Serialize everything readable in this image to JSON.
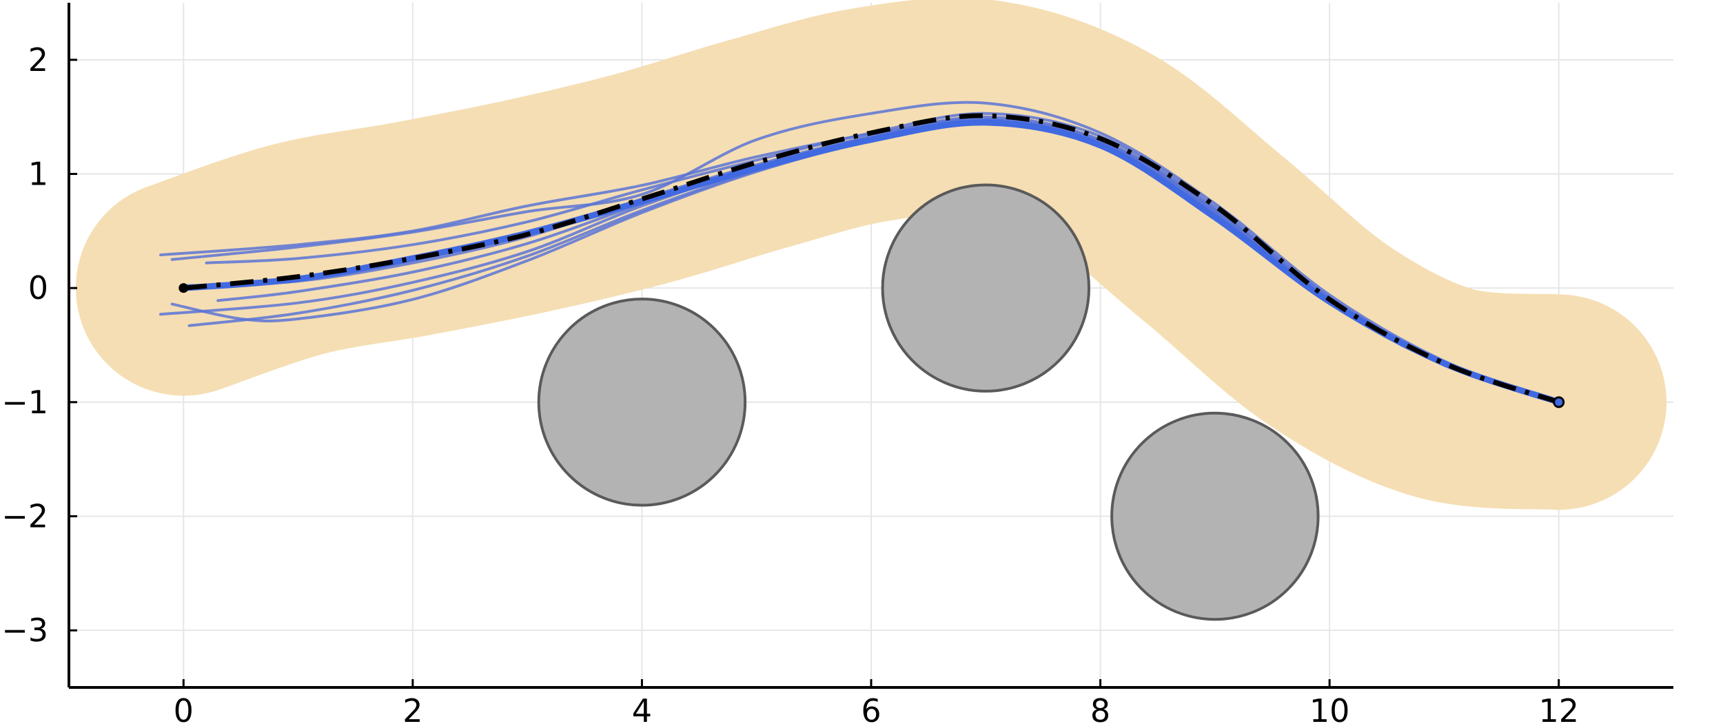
{
  "chart_data": {
    "type": "line",
    "title": "",
    "xlabel": "",
    "ylabel": "",
    "xlim": [
      -1,
      13
    ],
    "ylim": [
      -3.5,
      2.5
    ],
    "xticks": [
      0,
      2,
      4,
      6,
      8,
      10,
      12
    ],
    "yticks": [
      -3,
      -2,
      -1,
      0,
      1,
      2
    ],
    "xtick_labels": [
      "0",
      "2",
      "4",
      "6",
      "8",
      "10",
      "12"
    ],
    "ytick_labels": [
      "−3",
      "−2",
      "−1",
      "0",
      "1",
      "2"
    ],
    "grid": true,
    "legend": "none",
    "colors": {
      "corridor": "#f5deb3",
      "obstacle_fill": "#b3b3b3",
      "obstacle_edge": "#5a5a5a",
      "samples": "#5b74d6",
      "mean": "#4169e1",
      "reference": "#000000"
    },
    "corridor": {
      "centerline": [
        [
          0,
          0
        ],
        [
          1,
          0.34
        ],
        [
          2,
          0.52
        ],
        [
          3,
          0.72
        ],
        [
          4,
          0.96
        ],
        [
          5,
          1.26
        ],
        [
          6,
          1.52
        ],
        [
          7,
          1.58
        ],
        [
          8,
          1.22
        ],
        [
          9,
          0.42
        ],
        [
          10,
          -0.42
        ],
        [
          11,
          -0.92
        ],
        [
          12,
          -1
        ]
      ],
      "half_width": 0.94
    },
    "obstacles": [
      {
        "x": 4,
        "y": -1,
        "r": 0.9
      },
      {
        "x": 7,
        "y": 0,
        "r": 0.9
      },
      {
        "x": 9,
        "y": -2,
        "r": 0.9
      }
    ],
    "reference_path": [
      [
        0,
        0
      ],
      [
        1,
        0.1
      ],
      [
        2,
        0.26
      ],
      [
        3,
        0.47
      ],
      [
        4,
        0.78
      ],
      [
        5,
        1.1
      ],
      [
        6,
        1.36
      ],
      [
        7,
        1.51
      ],
      [
        8,
        1.31
      ],
      [
        9,
        0.72
      ],
      [
        10,
        -0.1
      ],
      [
        11,
        -0.66
      ],
      [
        12,
        -1
      ]
    ],
    "mean_path": [
      [
        0,
        0
      ],
      [
        1,
        0.08
      ],
      [
        2,
        0.26
      ],
      [
        3,
        0.48
      ],
      [
        4,
        0.76
      ],
      [
        5,
        1.05
      ],
      [
        6,
        1.3
      ],
      [
        7,
        1.45
      ],
      [
        8,
        1.25
      ],
      [
        9,
        0.62
      ],
      [
        10,
        -0.12
      ],
      [
        11,
        -0.66
      ],
      [
        12,
        -1
      ]
    ],
    "sample_paths": [
      [
        [
          -0.2,
          0.29
        ],
        [
          1,
          0.38
        ],
        [
          2,
          0.5
        ],
        [
          3,
          0.72
        ],
        [
          4,
          0.9
        ],
        [
          5,
          1.15
        ],
        [
          6,
          1.35
        ],
        [
          7,
          1.48
        ],
        [
          8,
          1.27
        ],
        [
          9,
          0.66
        ],
        [
          10,
          -0.11
        ],
        [
          11,
          -0.66
        ],
        [
          12,
          -1
        ]
      ],
      [
        [
          -0.1,
          0.25
        ],
        [
          1,
          0.36
        ],
        [
          2,
          0.49
        ],
        [
          3,
          0.67
        ],
        [
          4,
          0.82
        ],
        [
          5,
          1.3
        ],
        [
          6,
          1.53
        ],
        [
          7,
          1.62
        ],
        [
          8,
          1.36
        ],
        [
          9,
          0.74
        ],
        [
          10,
          -0.06
        ],
        [
          11,
          -0.64
        ],
        [
          12,
          -1
        ]
      ],
      [
        [
          0.2,
          0.22
        ],
        [
          1,
          0.26
        ],
        [
          2,
          0.38
        ],
        [
          3,
          0.58
        ],
        [
          4,
          0.86
        ],
        [
          5,
          1.12
        ],
        [
          6,
          1.36
        ],
        [
          7,
          1.53
        ],
        [
          8,
          1.33
        ],
        [
          9,
          0.71
        ],
        [
          10,
          -0.08
        ],
        [
          11,
          -0.65
        ],
        [
          12,
          -1
        ]
      ],
      [
        [
          0,
          0.02
        ],
        [
          1,
          0.06
        ],
        [
          2,
          0.22
        ],
        [
          3,
          0.45
        ],
        [
          4,
          0.78
        ],
        [
          5,
          1.08
        ],
        [
          6,
          1.33
        ],
        [
          7,
          1.5
        ],
        [
          8,
          1.3
        ],
        [
          9,
          0.69
        ],
        [
          10,
          -0.09
        ],
        [
          11,
          -0.65
        ],
        [
          12,
          -1
        ]
      ],
      [
        [
          0.3,
          -0.11
        ],
        [
          1,
          -0.03
        ],
        [
          2,
          0.14
        ],
        [
          3,
          0.39
        ],
        [
          4,
          0.74
        ],
        [
          5,
          1.06
        ],
        [
          6,
          1.32
        ],
        [
          7,
          1.48
        ],
        [
          8,
          1.29
        ],
        [
          9,
          0.68
        ],
        [
          10,
          -0.1
        ],
        [
          11,
          -0.66
        ],
        [
          12,
          -1
        ]
      ],
      [
        [
          -0.2,
          -0.23
        ],
        [
          1,
          -0.13
        ],
        [
          2,
          0.05
        ],
        [
          3,
          0.32
        ],
        [
          4,
          0.72
        ],
        [
          5,
          1.05
        ],
        [
          6,
          1.31
        ],
        [
          7,
          1.47
        ],
        [
          8,
          1.28
        ],
        [
          9,
          0.67
        ],
        [
          10,
          -0.1
        ],
        [
          11,
          -0.66
        ],
        [
          12,
          -1
        ]
      ],
      [
        [
          0.05,
          -0.33
        ],
        [
          1,
          -0.22
        ],
        [
          2,
          -0.02
        ],
        [
          3,
          0.28
        ],
        [
          4,
          0.68
        ],
        [
          5,
          1.03
        ],
        [
          6,
          1.3
        ],
        [
          7,
          1.46
        ],
        [
          8,
          1.27
        ],
        [
          9,
          0.66
        ],
        [
          10,
          -0.11
        ],
        [
          11,
          -0.66
        ],
        [
          12,
          -1
        ]
      ],
      [
        [
          -0.1,
          -0.14
        ],
        [
          0.5,
          -0.27
        ],
        [
          1,
          -0.27
        ],
        [
          2,
          -0.1
        ],
        [
          3,
          0.24
        ],
        [
          4,
          0.66
        ],
        [
          5,
          1.02
        ],
        [
          6,
          1.29
        ],
        [
          7,
          1.45
        ],
        [
          8,
          1.26
        ],
        [
          9,
          0.65
        ],
        [
          10,
          -0.11
        ],
        [
          11,
          -0.66
        ],
        [
          12,
          -1
        ]
      ]
    ],
    "start_point": [
      0,
      0
    ],
    "goal_point": [
      12,
      -1
    ]
  }
}
